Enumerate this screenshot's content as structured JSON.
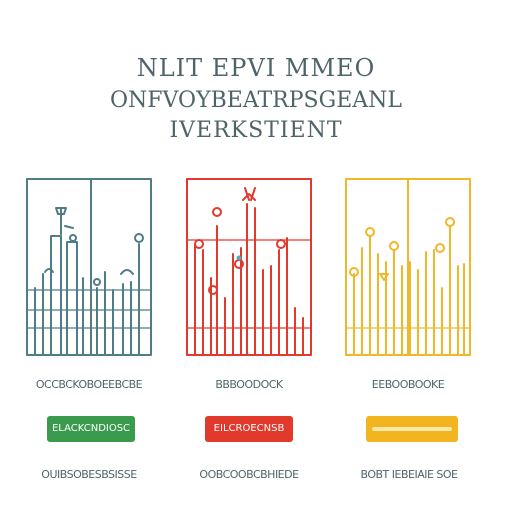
{
  "header": {
    "line1": "NLIT EPVI MMEO",
    "line2": "ONFVOYBEATRPSGEANL",
    "line3": "IVERKSTIENT"
  },
  "panels": [
    {
      "color": "#4f7d86",
      "caption": "OCCBCKOBOEEBCBE",
      "button_label": "ELACKCNDIOSC",
      "button_color": "#3a9a4e",
      "footer": "OUIBSOBESBSISSE"
    },
    {
      "color": "#e2392d",
      "caption": "BBBOODOCK",
      "button_label": "EILCROECNSB",
      "button_color": "#e2392d",
      "footer": "OOBCOOBCBHIEDE"
    },
    {
      "color": "#f0b72a",
      "caption": "EEBOOBOOKE",
      "button_label": "",
      "button_color": "#f2b51f",
      "footer": "BOBT IEBEIAIE SOE"
    }
  ]
}
